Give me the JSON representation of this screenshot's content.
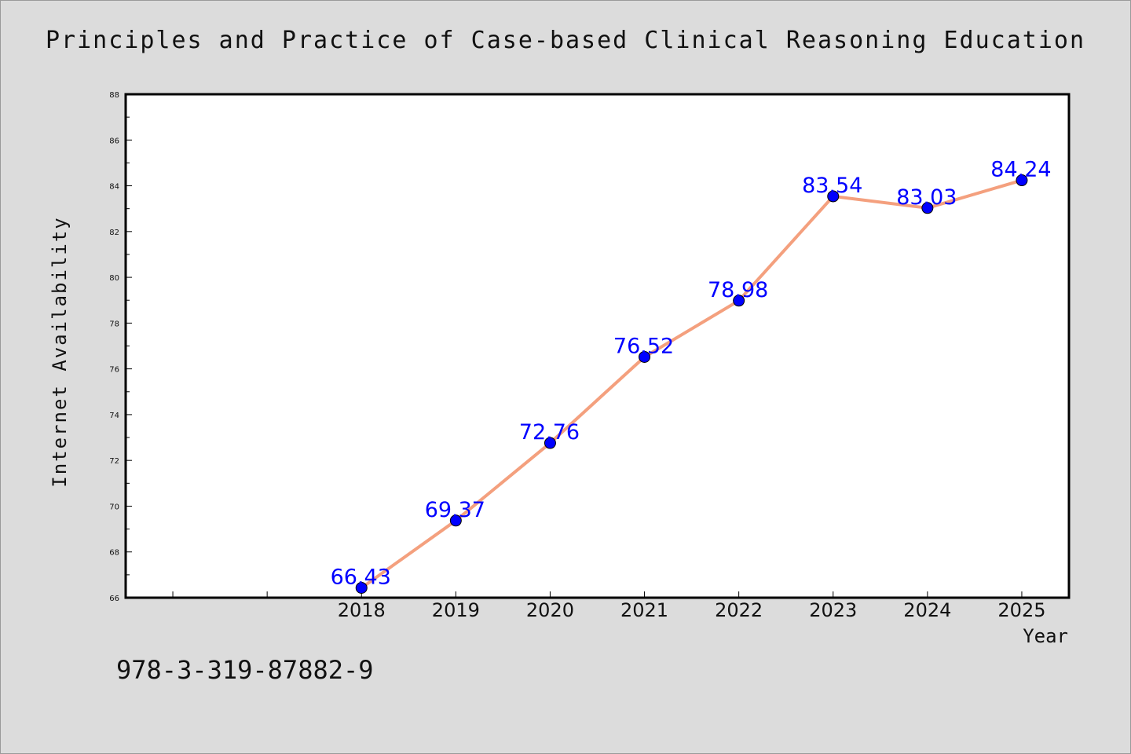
{
  "chart_data": {
    "type": "line",
    "title": "Principles and Practice of Case-based Clinical Reasoning Education",
    "xlabel": "Year",
    "ylabel": "Internet Availability",
    "x": [
      "2018",
      "2019",
      "2020",
      "2021",
      "2022",
      "2023",
      "2024",
      "2025"
    ],
    "series": [
      {
        "values": [
          66.43,
          69.37,
          72.76,
          76.52,
          78.98,
          83.54,
          83.03,
          84.24
        ],
        "line_color": "#f4a07e",
        "marker_color": "#0000ff",
        "label_color": "#0000ff"
      }
    ],
    "data_labels": [
      "66.43",
      "69.37",
      "72.76",
      "76.52",
      "78.98",
      "83.54",
      "83.03",
      "84.24"
    ],
    "ylim": [
      66,
      88
    ],
    "y_ticks": [
      "66",
      "68",
      "70",
      "72",
      "74",
      "76",
      "78",
      "80",
      "82",
      "84",
      "86",
      "88"
    ],
    "x_slots": 10,
    "grid": false,
    "legend": "none",
    "plot_background": "#ffffff",
    "page_background": "#dcdcdc"
  },
  "footer": {
    "text": "978-3-319-87882-9"
  }
}
